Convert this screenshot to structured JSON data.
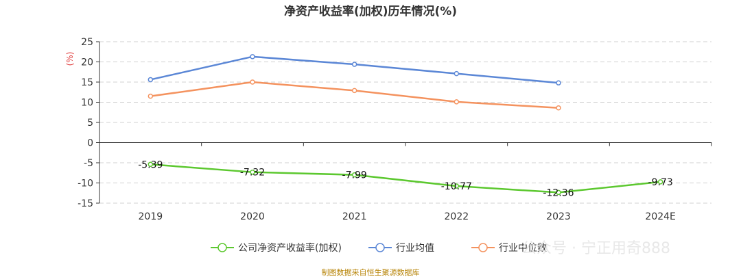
{
  "title": "净资产收益率(加权)历年情况(%)",
  "unit_label": "(%)",
  "source": "制图数据来自恒生聚源数据库",
  "watermark": "公众号 · 宁正用奇888",
  "chart_data": {
    "type": "line",
    "title": "净资产收益率(加权)历年情况(%)",
    "xlabel": "",
    "ylabel": "(%)",
    "categories": [
      "2019",
      "2020",
      "2021",
      "2022",
      "2023",
      "2024E"
    ],
    "ylim": [
      -15,
      25
    ],
    "yticks": [
      25,
      20,
      15,
      10,
      5,
      0,
      -5,
      -10,
      -15
    ],
    "grid": true,
    "legend_position": "bottom",
    "series": [
      {
        "name": "公司净资产收益率(加权)",
        "color": "#5cc82f",
        "values": [
          -5.39,
          -7.32,
          -7.99,
          -10.77,
          -12.36,
          -9.73
        ],
        "labels": [
          "-5.39",
          "-7.32",
          "-7.99",
          "-10.77",
          "-12.36",
          "-9.73"
        ]
      },
      {
        "name": "行业均值",
        "color": "#5b87d6",
        "values": [
          15.6,
          21.3,
          19.4,
          17.1,
          14.8,
          null
        ]
      },
      {
        "name": "行业中位数",
        "color": "#f4925e",
        "values": [
          11.5,
          15.0,
          12.9,
          10.1,
          8.6,
          null
        ]
      }
    ]
  }
}
